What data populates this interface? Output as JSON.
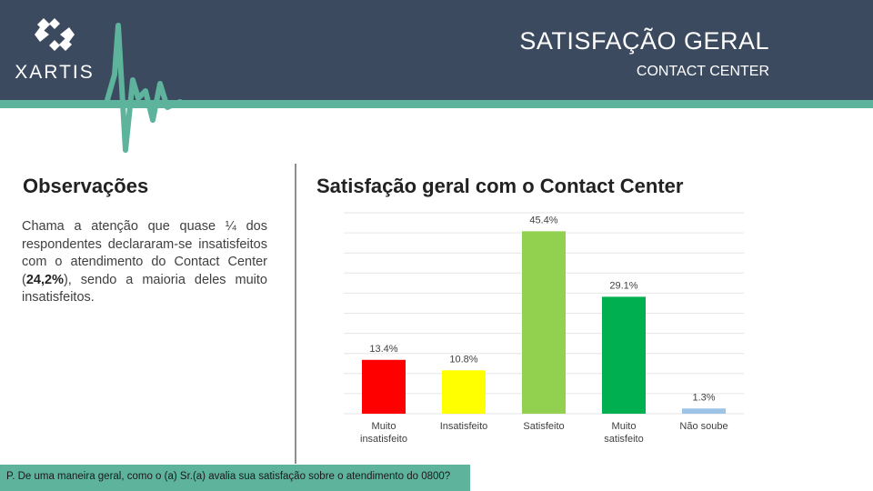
{
  "header": {
    "logo_text": "XARTIS",
    "title": "SATISFAÇÃO GERAL",
    "subtitle": "CONTACT CENTER"
  },
  "colors": {
    "header_bg": "#3c4a60",
    "accent_green": "#5db39c"
  },
  "observations": {
    "heading": "Observações",
    "text_before": "Chama a atenção que quase ¼ dos respondentes declararam-se insatisfeitos com o atendimento do Contact Center (",
    "highlight": "24,2%",
    "text_after": "), sendo a maioria deles muito insatisfeitos."
  },
  "chart_data": {
    "type": "bar",
    "title": "Satisfação geral com o Contact Center",
    "categories": [
      "Muito insatisfeito",
      "Insatisfeito",
      "Satisfeito",
      "Muito satisfeito",
      "Não soube"
    ],
    "values": [
      13.4,
      10.8,
      45.4,
      29.1,
      1.3
    ],
    "value_labels": [
      "13.4%",
      "10.8%",
      "45.4%",
      "29.1%",
      "1.3%"
    ],
    "colors": [
      "#ff0000",
      "#ffff00",
      "#92d050",
      "#00b050",
      "#9dc3e6"
    ],
    "ylim": [
      0,
      50
    ],
    "grid": true,
    "legend": "none"
  },
  "footer": {
    "question": "P. De uma maneira geral, como o (a) Sr.(a) avalia sua satisfação sobre o atendimento do 0800?"
  }
}
